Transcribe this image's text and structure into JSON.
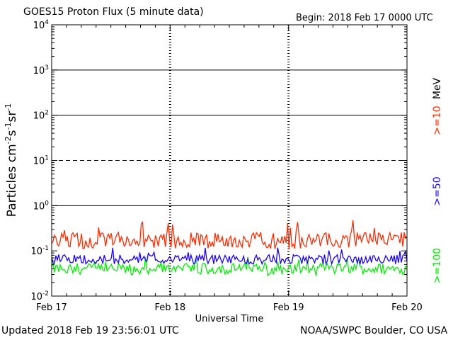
{
  "header": {
    "title": "GOES15 Proton Flux (5 minute data)",
    "begin": "Begin: 2018 Feb 17 0000 UTC"
  },
  "footer": {
    "updated": "Updated 2018 Feb 19 23:56:01 UTC",
    "source": "NOAA/SWPC Boulder, CO USA"
  },
  "colors": {
    "ge10": "#ff2a00",
    "ge50": "#1a00ff",
    "ge100": "#00ee00",
    "axes": "#000000"
  },
  "chart_data": {
    "type": "line",
    "title": "GOES15 Proton Flux (5 minute data)",
    "xlabel": "Universal Time",
    "ylabel": "Particles cm-2s-1sr-1",
    "x_ticks": [
      "Feb 17",
      "Feb 18",
      "Feb 19",
      "Feb 20"
    ],
    "x_range": [
      "2018-02-17",
      "2018-02-20"
    ],
    "y_scale": "log",
    "ylim": [
      0.01,
      10000
    ],
    "y_ticks": [
      {
        "base": "10",
        "exp": "-2"
      },
      {
        "base": "10",
        "exp": "-1"
      },
      {
        "base": "10",
        "exp": "0"
      },
      {
        "base": "10",
        "exp": "1"
      },
      {
        "base": "10",
        "exp": "2"
      },
      {
        "base": "10",
        "exp": "3"
      },
      {
        "base": "10",
        "exp": "4"
      }
    ],
    "threshold_lines": [
      10,
      100,
      1000
    ],
    "dashed_lines": [
      10
    ],
    "energy_unit": "MeV",
    "series": [
      {
        "name": ">=10",
        "color": "#ff2a00",
        "typical": 0.17,
        "low": 0.11,
        "high": 0.5
      },
      {
        "name": ">=50",
        "color": "#1a00ff",
        "typical": 0.065,
        "low": 0.05,
        "high": 0.12
      },
      {
        "name": ">=100",
        "color": "#00ee00",
        "typical": 0.04,
        "low": 0.027,
        "high": 0.075
      }
    ]
  }
}
